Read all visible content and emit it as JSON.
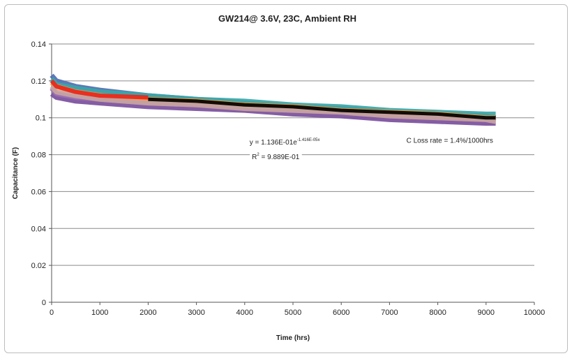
{
  "chart_data": {
    "type": "line",
    "title": "GW214@ 3.6V, 23C, Ambient RH",
    "xlabel": "Time (hrs)",
    "ylabel": "Capacitance (F)",
    "xlim": [
      0,
      10000
    ],
    "ylim": [
      0,
      0.14
    ],
    "x_ticks": [
      0,
      1000,
      2000,
      3000,
      4000,
      5000,
      6000,
      7000,
      8000,
      9000,
      10000
    ],
    "y_ticks": [
      0,
      0.02,
      0.04,
      0.06,
      0.08,
      0.1,
      0.12,
      0.14
    ],
    "x_tick_labels": [
      "0",
      "1000",
      "2000",
      "3000",
      "4000",
      "5000",
      "6000",
      "7000",
      "8000",
      "9000",
      "10000"
    ],
    "y_tick_labels": [
      "0",
      "0.02",
      "0.04",
      "0.06",
      "0.08",
      "0.1",
      "0.12",
      "0.14"
    ],
    "grid": "horizontal",
    "legend": "none",
    "series": [
      {
        "color": "#4f6fb0",
        "x": [
          0,
          100,
          500,
          1000,
          2000,
          3000,
          4000,
          5000,
          6000,
          7000,
          8000,
          9000,
          9200
        ],
        "y": [
          0.123,
          0.12,
          0.117,
          0.115,
          0.112,
          0.11,
          0.108,
          0.106,
          0.105,
          0.103,
          0.102,
          0.101,
          0.1
        ]
      },
      {
        "color": "#7a4f9c",
        "x": [
          0,
          100,
          500,
          1000,
          2000,
          3000,
          4000,
          5000,
          6000,
          7000,
          8000,
          9000,
          9200
        ],
        "y": [
          0.113,
          0.111,
          0.109,
          0.108,
          0.106,
          0.105,
          0.104,
          0.102,
          0.101,
          0.099,
          0.098,
          0.097,
          0.097
        ]
      },
      {
        "color": "#9b6fb0",
        "x": [
          0,
          100,
          500,
          1000,
          2000,
          3000,
          4000,
          5000,
          6000,
          7000,
          8000,
          9000,
          9200
        ],
        "y": [
          0.116,
          0.113,
          0.111,
          0.11,
          0.108,
          0.107,
          0.106,
          0.104,
          0.103,
          0.101,
          0.1,
          0.099,
          0.098
        ]
      },
      {
        "color": "#3aa6a8",
        "x": [
          0,
          100,
          500,
          1000,
          2000,
          3000,
          4000,
          5000,
          6000,
          7000,
          8000,
          9000,
          9200
        ],
        "y": [
          0.121,
          0.118,
          0.116,
          0.114,
          0.112,
          0.11,
          0.109,
          0.107,
          0.106,
          0.104,
          0.103,
          0.102,
          0.102
        ]
      },
      {
        "color": "#f29a3a",
        "x": [
          0,
          100,
          500,
          1000,
          2000,
          3000,
          4000,
          5000,
          6000,
          7000,
          8000,
          9000,
          9200
        ],
        "y": [
          0.119,
          0.117,
          0.114,
          0.112,
          0.11,
          0.109,
          0.107,
          0.106,
          0.104,
          0.103,
          0.102,
          0.1,
          0.1
        ]
      },
      {
        "color": "#c7a3a0",
        "x": [
          0,
          100,
          500,
          1000,
          2000,
          3000,
          4000,
          5000,
          6000,
          7000,
          8000,
          9000,
          9200
        ],
        "y": [
          0.117,
          0.114,
          0.112,
          0.11,
          0.108,
          0.107,
          0.105,
          0.104,
          0.103,
          0.101,
          0.1,
          0.099,
          0.098
        ]
      },
      {
        "color": "#e8251c",
        "x": [
          0,
          100,
          500,
          1000,
          2000
        ],
        "y": [
          0.12,
          0.117,
          0.114,
          0.112,
          0.111
        ]
      },
      {
        "color": "#000000",
        "x": [
          2000,
          3000,
          4000,
          5000,
          6000,
          7000,
          8000,
          9000,
          9200
        ],
        "y": [
          0.11,
          0.109,
          0.107,
          0.106,
          0.104,
          0.103,
          0.102,
          0.1,
          0.1
        ]
      }
    ],
    "annotations": [
      {
        "text": "y = 1.136E-01e",
        "superscript": "-1.416E-05x",
        "x": 4100,
        "y": 0.0855
      },
      {
        "text": "R",
        "superscript": "2",
        "suffix": " = 9.889E-01",
        "x": 4150,
        "y": 0.0775
      },
      {
        "text": "C Loss rate = 1.4%/1000hrs",
        "x": 7350,
        "y": 0.0865
      }
    ]
  }
}
